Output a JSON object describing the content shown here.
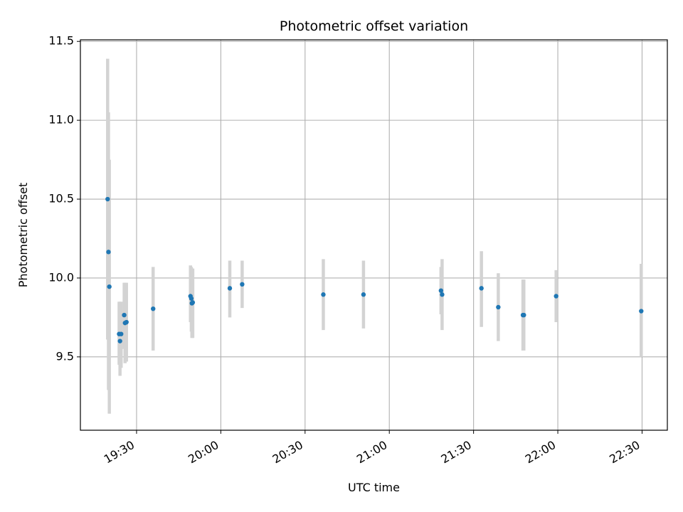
{
  "chart_data": {
    "type": "scatter",
    "title": "Photometric offset variation",
    "xlabel": "UTC time",
    "ylabel": "Photometric offset",
    "xlim": [
      "19:10",
      "22:39"
    ],
    "ylim": [
      9.035,
      11.51
    ],
    "grid": true,
    "x_ticks": [
      "19:30",
      "20:00",
      "20:30",
      "21:00",
      "21:30",
      "22:00",
      "22:30"
    ],
    "y_ticks": [
      "9.5",
      "10.0",
      "10.5",
      "11.0",
      "11.5"
    ],
    "points": [
      {
        "x": "19:19.7",
        "y": 10.5,
        "err_low": 9.61,
        "err_high": 11.39
      },
      {
        "x": "19:20.0",
        "y": 10.165,
        "err_low": 9.29,
        "err_high": 11.05
      },
      {
        "x": "19:20.3",
        "y": 9.945,
        "err_low": 9.14,
        "err_high": 10.75
      },
      {
        "x": "19:23.8",
        "y": 9.645,
        "err_low": 9.45,
        "err_high": 9.85
      },
      {
        "x": "19:24.1",
        "y": 9.6,
        "err_low": 9.38,
        "err_high": 9.82
      },
      {
        "x": "19:24.5",
        "y": 9.645,
        "err_low": 9.43,
        "err_high": 9.85
      },
      {
        "x": "19:25.6",
        "y": 9.765,
        "err_low": 9.55,
        "err_high": 9.97
      },
      {
        "x": "19:25.9",
        "y": 9.715,
        "err_low": 9.46,
        "err_high": 9.97
      },
      {
        "x": "19:26.4",
        "y": 9.72,
        "err_low": 9.47,
        "err_high": 9.97
      },
      {
        "x": "19:35.9",
        "y": 9.805,
        "err_low": 9.54,
        "err_high": 10.07
      },
      {
        "x": "19:49.2",
        "y": 9.885,
        "err_low": 9.72,
        "err_high": 10.08
      },
      {
        "x": "19:49.5",
        "y": 9.87,
        "err_low": 9.66,
        "err_high": 10.07
      },
      {
        "x": "19:49.7",
        "y": 9.84,
        "err_low": 9.62,
        "err_high": 10.06
      },
      {
        "x": "19:50.0",
        "y": 9.845,
        "err_low": 9.62,
        "err_high": 10.06
      },
      {
        "x": "20:03.2",
        "y": 9.935,
        "err_low": 9.75,
        "err_high": 10.11
      },
      {
        "x": "20:07.6",
        "y": 9.96,
        "err_low": 9.81,
        "err_high": 10.11
      },
      {
        "x": "20:36.5",
        "y": 9.895,
        "err_low": 9.67,
        "err_high": 10.12
      },
      {
        "x": "20:50.8",
        "y": 9.895,
        "err_low": 9.68,
        "err_high": 10.11
      },
      {
        "x": "21:18.4",
        "y": 9.92,
        "err_low": 9.77,
        "err_high": 10.07
      },
      {
        "x": "21:18.8",
        "y": 9.895,
        "err_low": 9.67,
        "err_high": 10.12
      },
      {
        "x": "21:32.8",
        "y": 9.935,
        "err_low": 9.69,
        "err_high": 10.17
      },
      {
        "x": "21:38.8",
        "y": 9.815,
        "err_low": 9.6,
        "err_high": 10.03
      },
      {
        "x": "21:47.6",
        "y": 9.765,
        "err_low": 9.54,
        "err_high": 9.99
      },
      {
        "x": "21:47.9",
        "y": 9.765,
        "err_low": 9.54,
        "err_high": 9.99
      },
      {
        "x": "21:59.4",
        "y": 9.885,
        "err_low": 9.72,
        "err_high": 10.05
      },
      {
        "x": "22:29.7",
        "y": 9.79,
        "err_low": 9.5,
        "err_high": 10.09
      }
    ],
    "colors": {
      "point": "#1f77b4",
      "errorbar": "#d3d3d3",
      "grid": "#b0b0b0",
      "axes": "#000000"
    }
  }
}
